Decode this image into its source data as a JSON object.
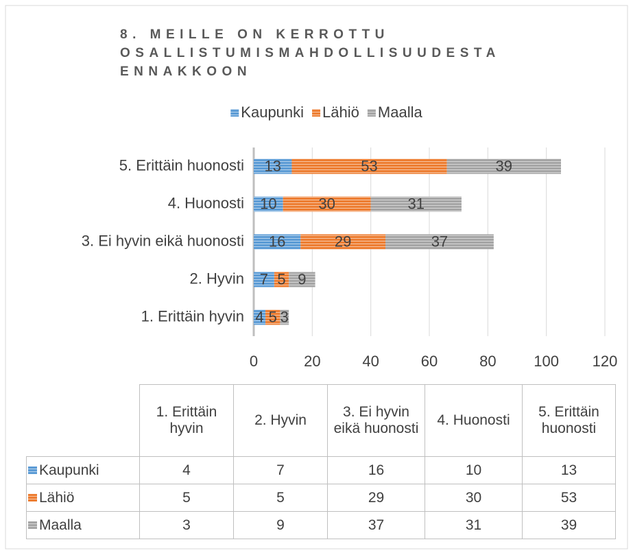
{
  "chart_data": {
    "type": "bar",
    "orientation": "horizontal",
    "stacked": true,
    "title": "8. MEILLE ON KERROTTU OSALLISTUMISMAHDOLLISUUDESTA ENNAKKOON",
    "categories": [
      "1. Erittäin hyvin",
      "2. Hyvin",
      "3. Ei hyvin eikä huonosti",
      "4. Huonosti",
      "5. Erittäin huonosti"
    ],
    "series": [
      {
        "name": "Kaupunki",
        "color": "#5b9bd5",
        "values": [
          4,
          7,
          16,
          10,
          13
        ]
      },
      {
        "name": "Lähiö",
        "color": "#ed7d31",
        "values": [
          5,
          5,
          29,
          30,
          53
        ]
      },
      {
        "name": "Maalla",
        "color": "#a5a5a5",
        "values": [
          3,
          9,
          37,
          31,
          39
        ]
      }
    ],
    "xlim": [
      0,
      120
    ],
    "xticks": [
      0,
      20,
      40,
      60,
      80,
      100,
      120
    ],
    "grid": true,
    "legend": "top",
    "data_table": true
  }
}
